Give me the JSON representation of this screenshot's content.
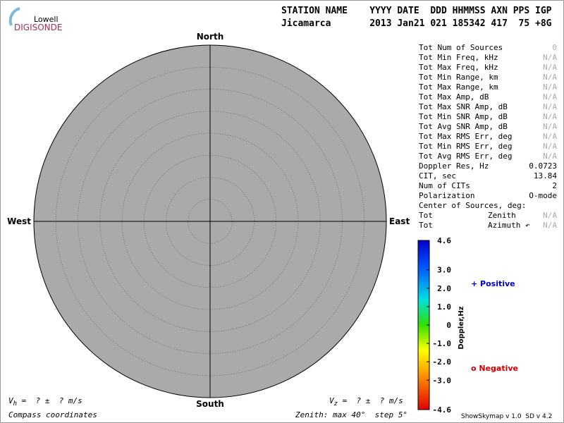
{
  "logo": {
    "top": "Lowell",
    "bottom": "DIGISONDE"
  },
  "header": {
    "labels": "STATION NAME    YYYY DATE  DDD HHMMSS AXN PPS IGP",
    "values": "Jicamarca       2013 Jan21 021 185342 417  75 +8G"
  },
  "compass": {
    "north": "North",
    "south": "South",
    "east": "East",
    "west": "West"
  },
  "stats": [
    {
      "label": "Tot Num of Sources",
      "value": "0"
    },
    {
      "label": "Tot Min Freq, kHz",
      "value": "N/A"
    },
    {
      "label": "Tot Max Freq, kHz",
      "value": "N/A"
    },
    {
      "label": "Tot Min Range, km",
      "value": "N/A"
    },
    {
      "label": "Tot Max Range, km",
      "value": "N/A"
    },
    {
      "label": "Tot Max Amp, dB",
      "value": "N/A"
    },
    {
      "label": "Tot Max SNR Amp, dB",
      "value": "N/A"
    },
    {
      "label": "Tot Min SNR Amp, dB",
      "value": "N/A"
    },
    {
      "label": "Tot Avg SNR Amp, dB",
      "value": "N/A"
    },
    {
      "label": "Tot Max RMS Err, deg",
      "value": "N/A"
    },
    {
      "label": "Tot Min RMS Err, deg",
      "value": "N/A"
    },
    {
      "label": "Tot Avg RMS Err, deg",
      "value": "N/A"
    },
    {
      "label": "Doppler Res, Hz",
      "value": "0.0723"
    },
    {
      "label": "CIT, sec",
      "value": "13.84"
    },
    {
      "label": "Num of CITs",
      "value": "2"
    },
    {
      "label": "Polarization",
      "value": "O-mode"
    },
    {
      "label": "Center of Sources, deg:"
    },
    {
      "label": "Tot",
      "sublabel": "Zenith",
      "value": "N/A"
    },
    {
      "label": "Tot",
      "sublabel": "Azimuth ↶",
      "value": "N/A"
    }
  ],
  "colorbar": {
    "title": "Doppler,Hz",
    "lim": [
      -4.6,
      4.6
    ],
    "ticks": [
      {
        "value": 4.6,
        "label": "4.6"
      },
      {
        "value": 3,
        "label": "3.0"
      },
      {
        "value": 2,
        "label": "2.0"
      },
      {
        "value": 1,
        "label": "1.0"
      },
      0,
      {
        "value": -1,
        "label": "-1.0"
      },
      {
        "value": -2,
        "label": "-2.0"
      },
      {
        "value": -3,
        "label": "-3.0"
      },
      {
        "value": -4.6,
        "label": "-4.6"
      }
    ]
  },
  "legend": {
    "positive": "+ Positive",
    "negative": "o Negative"
  },
  "footer": {
    "vh": {
      "symbol": "V",
      "sub": "h",
      "text": " =  ? ±  ? m/s"
    },
    "vz": {
      "symbol": "V",
      "sub": "z",
      "text": " =  ? ±  ? m/s"
    },
    "coords": "Compass coordinates",
    "zenith": "Zenith: max 40°  step 5°",
    "version": "ShowSkymap v 1.0  SD v 4.2"
  }
}
